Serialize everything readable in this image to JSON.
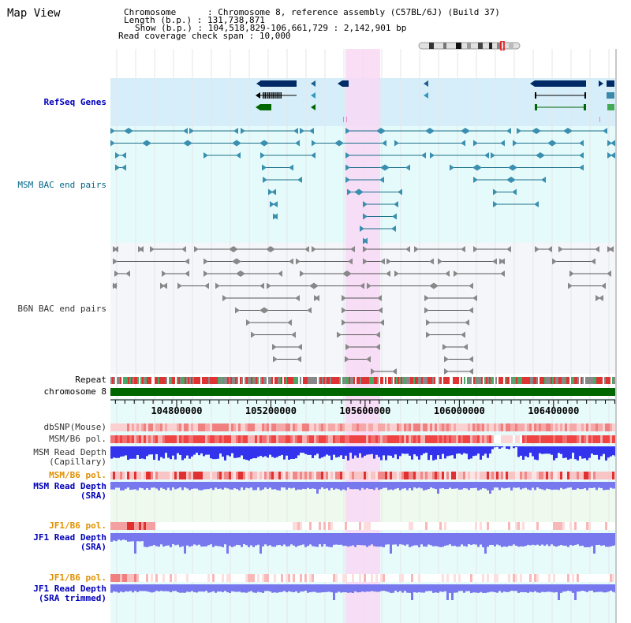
{
  "page": {
    "title": "Map View"
  },
  "info": {
    "chromosome_key": "Chromosome",
    "chromosome_value": ": Chromosome 8, reference assembly (C57BL/6J) (Build 37)",
    "length_key": "Length (b.p.)",
    "length_value": ": 131,738,871",
    "show_key": "Show (b.p.)",
    "show_value": ": 104,518,829-106,661,729 : 2,142,901 bp",
    "coverage_key": "Read coverage check span",
    "coverage_value": ": 10,000"
  },
  "tracks": {
    "refseq": "RefSeq Genes",
    "msm_bac": "MSM BAC end pairs",
    "b6n_bac": "B6N BAC end pairs",
    "repeat": "Repeat",
    "chromosome": "chromosome 8",
    "dbsnp": "dbSNP(Mouse)",
    "msm_b6_pol": "MSM/B6 pol.",
    "msm_depth_cap_1": "MSM Read Depth",
    "msm_depth_cap_2": "(Capillary)",
    "msm_b6_pol_2": "MSM/B6 pol.",
    "msm_depth_sra_1": "MSM Read Depth",
    "msm_depth_sra_2": "(SRA)",
    "jf1_b6_pol": "JF1/B6 pol.",
    "jf1_depth_sra_1": "JF1 Read Depth",
    "jf1_depth_sra_2": "(SRA)",
    "jf1_b6_pol_2": "JF1/B6 pol.",
    "jf1_depth_trim_1": "JF1 Read Depth",
    "jf1_depth_trim_2": "(SRA trimmed)"
  },
  "axis": {
    "ticks": [
      "104800000",
      "105200000",
      "105600000",
      "106000000",
      "106400000"
    ],
    "tick_values": [
      104800000,
      105200000,
      105600000,
      106000000,
      106400000
    ],
    "range": [
      104518829,
      106661729
    ]
  },
  "highlight": {
    "start": 105500000,
    "end": 105650000
  },
  "colors": {
    "refseq_bg": "#d6eef9",
    "msm_bg": "#e5fbfb",
    "b6n_bg": "#f4f6fa",
    "highlight": "#f8d8f4",
    "gene": "#002a66",
    "gene_green": "#006600",
    "msm_pair": "#1a6f8a",
    "b6n_pair": "#555555",
    "chromosome": "#006600",
    "depth": "#3333ee",
    "depth_light": "#7777ee"
  }
}
